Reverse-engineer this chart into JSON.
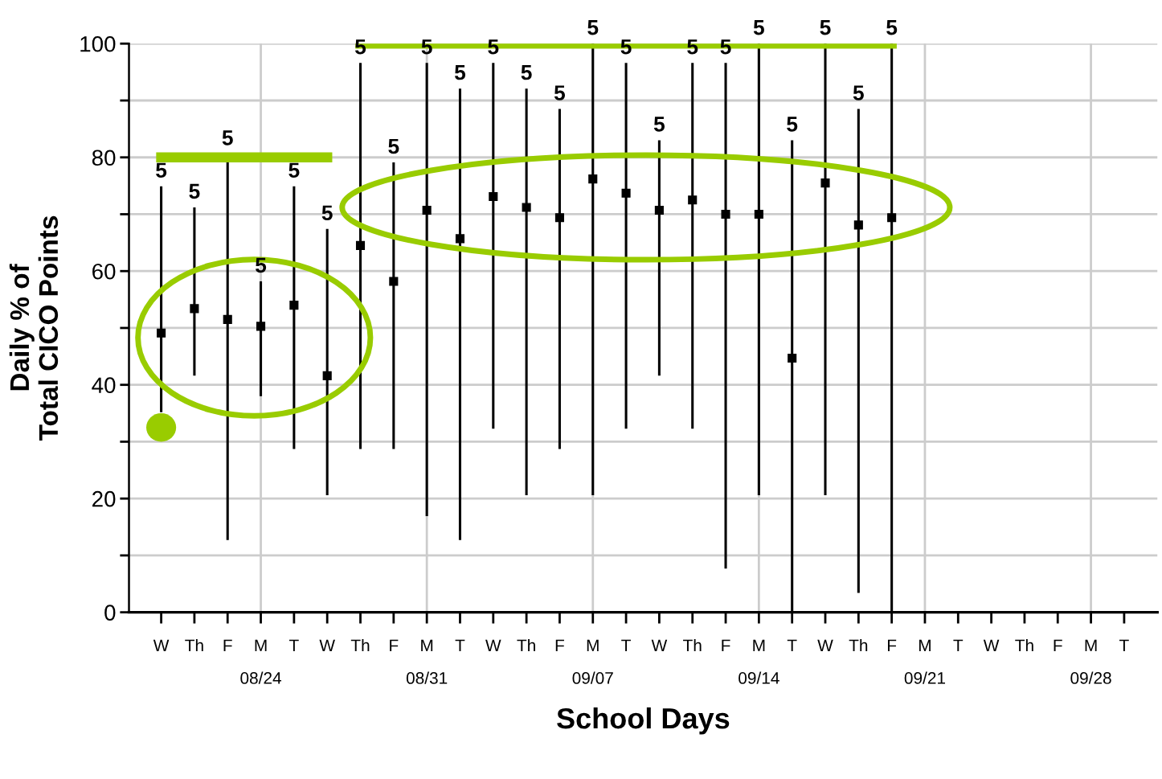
{
  "chart_data": {
    "type": "scatter",
    "xlabel": "School Days",
    "ylabel": "Daily % of\nTotal CICO Points",
    "categories": [
      "W",
      "Th",
      "F",
      "M\n08/24",
      "T",
      "W",
      "Th",
      "F",
      "M\n08/31",
      "T",
      "W",
      "Th",
      "F",
      "M\n09/07",
      "T",
      "W",
      "Th",
      "F",
      "M\n09/14",
      "T",
      "W",
      "Th",
      "F",
      "M\n09/21",
      "T",
      "W",
      "Th",
      "F",
      "M\n09/28",
      "T"
    ],
    "ylim": [
      0,
      100
    ],
    "yticks": [
      0,
      {
        "value": 10,
        "label": null
      },
      20,
      {
        "value": 30,
        "label": null
      },
      40,
      {
        "value": 50,
        "label": null
      },
      60,
      {
        "value": 70,
        "label": null
      },
      80,
      {
        "value": 90,
        "label": null
      },
      100
    ],
    "grid": true,
    "series": [
      {
        "marker": "square",
        "color": "#000000",
        "values": [
          49.1,
          53.4,
          51.5,
          50.3,
          54.0,
          41.6,
          64.5,
          58.2,
          70.7,
          65.7,
          73.1,
          71.2,
          69.4,
          76.2,
          73.7,
          70.7,
          72.5,
          70.0,
          70.0,
          44.7,
          75.5,
          68.1,
          69.4,
          null,
          null,
          null,
          null,
          null,
          null,
          null
        ],
        "errors": [
          [
            35.2,
            74.9
          ],
          [
            41.6,
            71.2
          ],
          [
            12.7,
            80.6
          ],
          [
            38.0,
            58.2
          ],
          [
            28.7,
            74.9
          ],
          [
            20.6,
            67.4
          ],
          [
            28.7,
            96.6
          ],
          [
            28.7,
            79.1
          ],
          [
            16.9,
            96.6
          ],
          [
            12.7,
            92.1
          ],
          [
            32.3,
            96.6
          ],
          [
            20.6,
            92.1
          ],
          [
            28.7,
            88.5
          ],
          [
            20.6,
            100
          ],
          [
            32.3,
            96.6
          ],
          [
            41.6,
            83.0
          ],
          [
            32.3,
            96.6
          ],
          [
            7.7,
            96.6
          ],
          [
            20.6,
            100
          ],
          [
            0,
            83.0
          ],
          [
            20.6,
            100
          ],
          [
            3.4,
            88.5
          ],
          [
            0,
            100
          ],
          null,
          null,
          null,
          null,
          null,
          null,
          null
        ]
      },
      {
        "type": "line",
        "marker": "none",
        "color": "#99cc00",
        "values": [
          80,
          80,
          80,
          80,
          80,
          80,
          null,
          null,
          null,
          null,
          null,
          null,
          null,
          null,
          null,
          null,
          null,
          null,
          null,
          null,
          null,
          null,
          null,
          null,
          null,
          null,
          null,
          null,
          null,
          null
        ]
      },
      {
        "type": "line",
        "marker": "none",
        "color": "#99cc00",
        "values": [
          null,
          null,
          null,
          null,
          null,
          null,
          100,
          100,
          100,
          100,
          100,
          100,
          100,
          100,
          100,
          100,
          100,
          100,
          100,
          100,
          100,
          100,
          100,
          null,
          null,
          null,
          null,
          null,
          null,
          null
        ]
      }
    ],
    "annotations": [
      "5",
      "5",
      "5",
      "5",
      "5",
      "5",
      "5",
      "5",
      "5",
      "5",
      "5",
      "5",
      "5",
      "5",
      "5",
      "5",
      "5",
      "5",
      "5",
      "5",
      "5",
      "5",
      "5"
    ]
  }
}
